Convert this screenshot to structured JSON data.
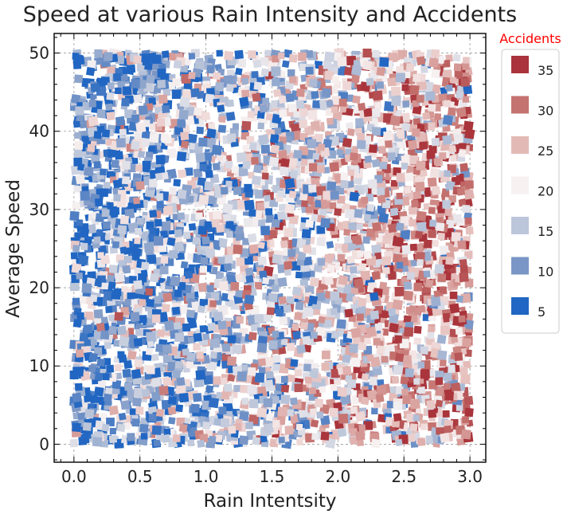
{
  "chart_data": {
    "type": "scatter",
    "title": "Speed at various Rain Intensity and Accidents",
    "xlabel": "Rain Intentsity",
    "ylabel": "Average Speed",
    "xlim": [
      -0.15,
      3.12
    ],
    "ylim": [
      -2.3,
      52.5
    ],
    "xticks": [
      0.0,
      0.5,
      1.0,
      1.5,
      2.0,
      2.5,
      3.0
    ],
    "xtick_labels": [
      "0.0",
      "0.5",
      "1.0",
      "1.5",
      "2.0",
      "2.5",
      "3.0"
    ],
    "yticks": [
      0,
      10,
      20,
      30,
      40,
      50
    ],
    "ytick_labels": [
      "0",
      "10",
      "20",
      "30",
      "40",
      "50"
    ],
    "grid": true,
    "marker": "square",
    "color_by": "Accidents",
    "colormap": "vlag (blue-white-red)",
    "color_range": [
      3,
      37
    ],
    "generated": {
      "n_points": 4200,
      "x_range": [
        0.0,
        3.0
      ],
      "y_range": [
        0,
        50
      ],
      "accidents_min": 3,
      "accidents_max": 37,
      "accidents_trend": "higher accident counts at higher rain intensity",
      "seed": 7
    },
    "legend": {
      "title": "Accidents",
      "position": "outside-right",
      "entries": [
        {
          "label": "35",
          "color": "#a9343b"
        },
        {
          "label": "30",
          "color": "#c57370"
        },
        {
          "label": "25",
          "color": "#e3b9b6"
        },
        {
          "label": "20",
          "color": "#f7f1f1"
        },
        {
          "label": "15",
          "color": "#bcc6da"
        },
        {
          "label": "10",
          "color": "#7996c6"
        },
        {
          "label": "5",
          "color": "#2166c2"
        }
      ]
    }
  }
}
